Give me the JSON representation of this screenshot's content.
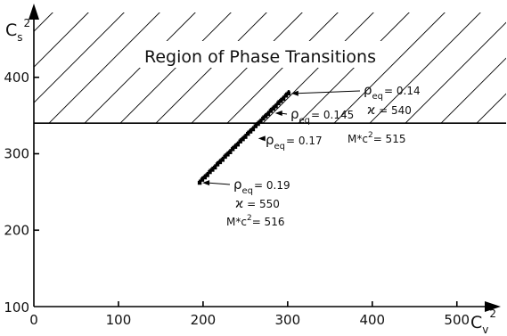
{
  "chart_data": {
    "type": "scatter",
    "x_axis": {
      "label_main": "C",
      "label_sub": "v",
      "label_sup": "2",
      "ticks": [
        0,
        100,
        200,
        300,
        400,
        500
      ],
      "range": [
        0,
        555
      ]
    },
    "y_axis": {
      "label_main": "C",
      "label_sub": "s",
      "label_sup": "2",
      "ticks": [
        100,
        200,
        300,
        400
      ],
      "range": [
        100,
        475
      ]
    },
    "region": {
      "label": "Region of Phase Transitions",
      "threshold_y": 340
    },
    "series": [
      {
        "points": [
          [
            196,
            262
          ],
          [
            199,
            266
          ],
          [
            202,
            269
          ],
          [
            205,
            272
          ],
          [
            208,
            276
          ],
          [
            211,
            279
          ],
          [
            214,
            282
          ],
          [
            217,
            286
          ],
          [
            220,
            289
          ],
          [
            223,
            292
          ],
          [
            226,
            296
          ],
          [
            229,
            299
          ],
          [
            232,
            302
          ],
          [
            235,
            306
          ],
          [
            238,
            309
          ],
          [
            241,
            312
          ],
          [
            244,
            316
          ],
          [
            247,
            319
          ],
          [
            250,
            322
          ],
          [
            253,
            326
          ],
          [
            256,
            329
          ],
          [
            259,
            332
          ],
          [
            262,
            336
          ],
          [
            265,
            339
          ],
          [
            268,
            342
          ],
          [
            271,
            346
          ],
          [
            274,
            349
          ],
          [
            277,
            352
          ],
          [
            280,
            356
          ],
          [
            283,
            359
          ],
          [
            286,
            362
          ],
          [
            289,
            366
          ],
          [
            292,
            369
          ],
          [
            295,
            372
          ],
          [
            298,
            376
          ],
          [
            301,
            379
          ]
        ]
      }
    ],
    "annotations": [
      {
        "id": "a014",
        "rho": "0.14",
        "kappa": "540",
        "mc2": "515",
        "x": 301,
        "y": 379
      },
      {
        "id": "a0145",
        "rho": "0.145",
        "x": 282,
        "y": 353
      },
      {
        "id": "a017",
        "rho": "0.17",
        "x": 262,
        "y": 320
      },
      {
        "id": "a019",
        "rho": "0.19",
        "kappa": "550",
        "mc2": "516",
        "x": 196,
        "y": 262
      }
    ],
    "text": {
      "rho": "ρ",
      "eq": "eq",
      "kappa": "ϰ",
      "mstar": "M*c",
      "two": "2",
      "eqsign": "= "
    }
  }
}
